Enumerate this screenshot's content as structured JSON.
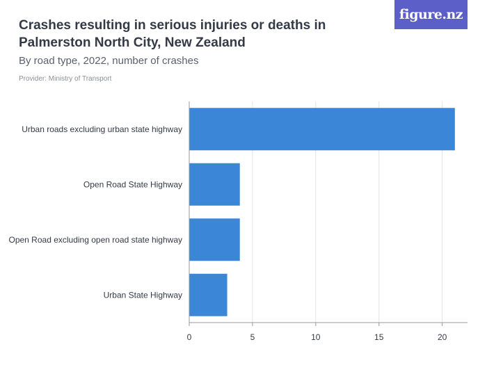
{
  "header": {
    "title": "Crashes resulting in serious injuries or deaths in Palmerston North City, New Zealand",
    "subtitle": "By road type, 2022, number of crashes",
    "provider": "Provider: Ministry of Transport",
    "logo_text": "figure.nz"
  },
  "colors": {
    "bar": "#3b86d6",
    "logo_bg": "#5b5fc7",
    "grid": "#e3e3e3",
    "axis": "#9a9a9a"
  },
  "chart_data": {
    "type": "bar",
    "orientation": "horizontal",
    "title": "Crashes resulting in serious injuries or deaths in Palmerston North City, New Zealand",
    "subtitle": "By road type, 2022, number of crashes",
    "categories": [
      "Urban roads excluding urban state highway",
      "Open Road State Highway",
      "Open Road excluding open road state highway",
      "Urban State Highway"
    ],
    "values": [
      21,
      4,
      4,
      3
    ],
    "xlim": [
      0,
      22
    ],
    "xticks": [
      0,
      5,
      10,
      15,
      20
    ],
    "grid": true,
    "legend": "none"
  }
}
